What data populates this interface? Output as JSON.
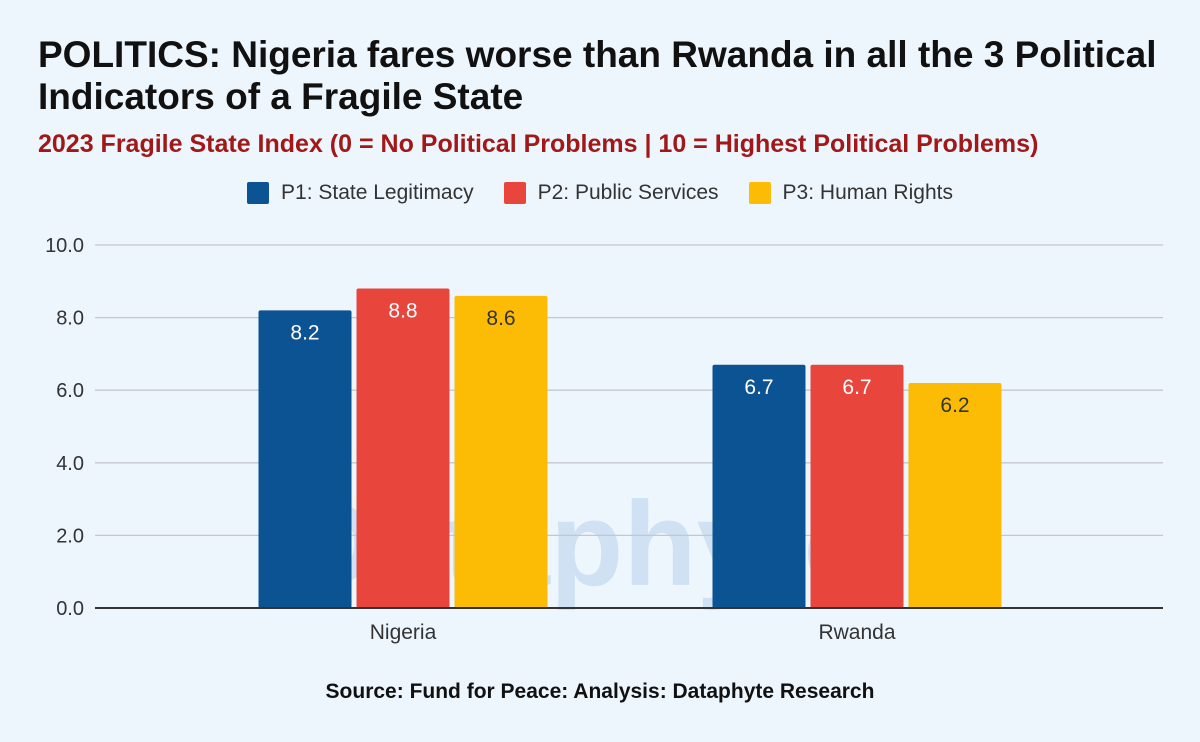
{
  "title": "POLITICS: Nigeria fares worse than Rwanda in all the 3 Political Indicators of a Fragile State",
  "subtitle": "2023 Fragile State Index (0 = No Political Problems | 10 = Highest Political Problems)",
  "source": "Source: Fund for Peace: Analysis: Dataphyte Research",
  "watermark": "Dataphyte",
  "colors": {
    "p1": "#0c5394",
    "p2": "#e8453c",
    "p3": "#fcbc06",
    "grid": "#c4c8cc",
    "axis": "#333333"
  },
  "chart_data": {
    "type": "bar",
    "categories": [
      "Nigeria",
      "Rwanda"
    ],
    "series": [
      {
        "name": "P1: State Legitimacy",
        "values": [
          8.2,
          6.7
        ],
        "color": "#0c5394"
      },
      {
        "name": "P2: Public Services",
        "values": [
          8.8,
          6.7
        ],
        "color": "#e8453c"
      },
      {
        "name": "P3: Human Rights",
        "values": [
          8.6,
          6.2
        ],
        "color": "#fcbc06"
      }
    ],
    "ylim": [
      0,
      10
    ],
    "yticks": [
      "0.0",
      "2.0",
      "4.0",
      "6.0",
      "8.0",
      "10.0"
    ],
    "data_labels": [
      [
        "8.2",
        "6.7"
      ],
      [
        "8.8",
        "6.7"
      ],
      [
        "8.6",
        "6.2"
      ]
    ],
    "grid": true,
    "legend": "top"
  }
}
